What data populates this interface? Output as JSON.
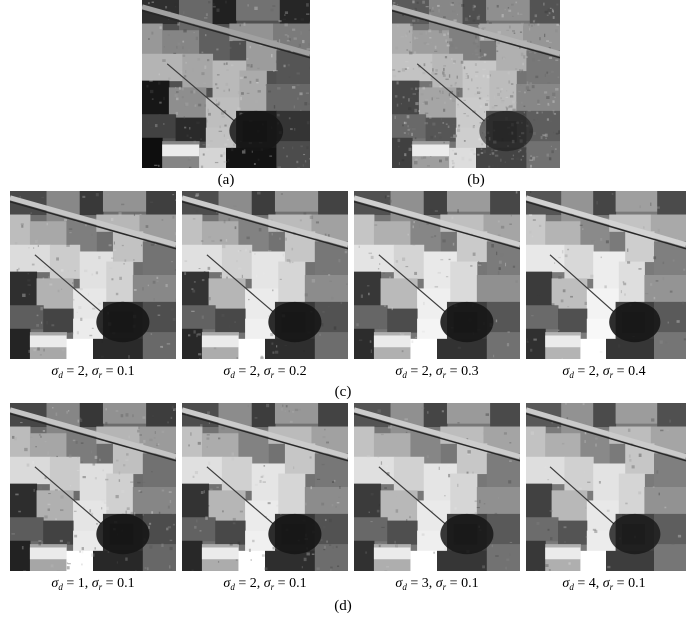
{
  "figure": {
    "top_row": {
      "panel_a": {
        "label": "(a)"
      },
      "panel_b": {
        "label": "(b)"
      }
    },
    "row_c": {
      "label": "(c)",
      "captions": [
        {
          "sd": "2",
          "sr": "0.1"
        },
        {
          "sd": "2",
          "sr": "0.2"
        },
        {
          "sd": "2",
          "sr": "0.3"
        },
        {
          "sd": "2",
          "sr": "0.4"
        }
      ]
    },
    "row_d": {
      "label": "(d)",
      "captions": [
        {
          "sd": "1",
          "sr": "0.1"
        },
        {
          "sd": "2",
          "sr": "0.1"
        },
        {
          "sd": "3",
          "sr": "0.1"
        },
        {
          "sd": "4",
          "sr": "0.1"
        }
      ]
    }
  }
}
